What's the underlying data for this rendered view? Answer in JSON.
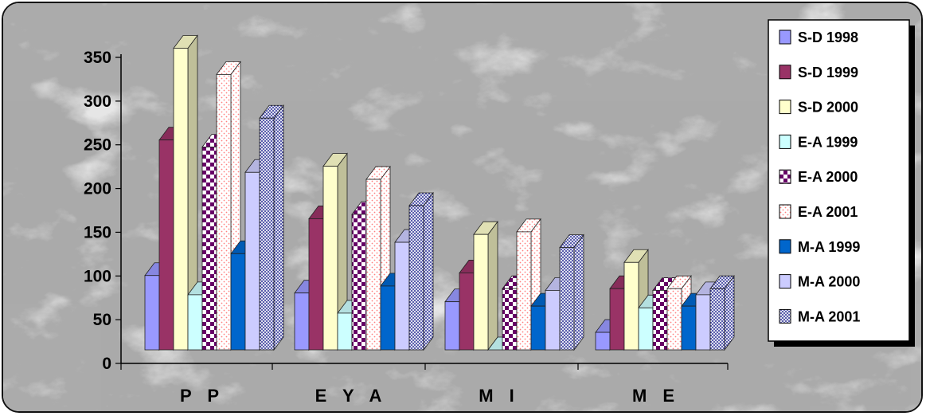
{
  "chart_data": {
    "type": "bar",
    "subtype": "3d-clustered-column",
    "categories": [
      "P P",
      "E Y A",
      "M I",
      "M E"
    ],
    "ylim": [
      0,
      350
    ],
    "yticks": [
      0,
      50,
      100,
      150,
      200,
      250,
      300,
      350
    ],
    "grid": false,
    "legend_position": "right",
    "series": [
      {
        "name": "S-D 1998",
        "values": [
          85,
          65,
          55,
          20
        ],
        "color": "#9999FF",
        "pattern": "solid"
      },
      {
        "name": "S-D 1999",
        "values": [
          240,
          150,
          88,
          70
        ],
        "color": "#993366",
        "pattern": "solid"
      },
      {
        "name": "S-D 2000",
        "values": [
          345,
          210,
          132,
          100
        ],
        "color": "#FFFFCC",
        "pattern": "solid"
      },
      {
        "name": "E-A 1999",
        "values": [
          63,
          42,
          0,
          48
        ],
        "color": "#CCFFFF",
        "pattern": "solid"
      },
      {
        "name": "E-A 2000",
        "values": [
          232,
          155,
          70,
          68
        ],
        "color": "#660066",
        "pattern": "checker"
      },
      {
        "name": "E-A 2001",
        "values": [
          315,
          195,
          135,
          70
        ],
        "color": "#FF8080",
        "pattern": "fine-dots"
      },
      {
        "name": "M-A 1999",
        "values": [
          110,
          73,
          50,
          50
        ],
        "color": "#0066CC",
        "pattern": "solid"
      },
      {
        "name": "M-A 2000",
        "values": [
          203,
          123,
          68,
          63
        ],
        "color": "#CCCCFF",
        "pattern": "solid"
      },
      {
        "name": "M-A 2001",
        "values": [
          265,
          165,
          117,
          70
        ],
        "color": "#000080",
        "pattern": "dense-dots"
      }
    ]
  }
}
